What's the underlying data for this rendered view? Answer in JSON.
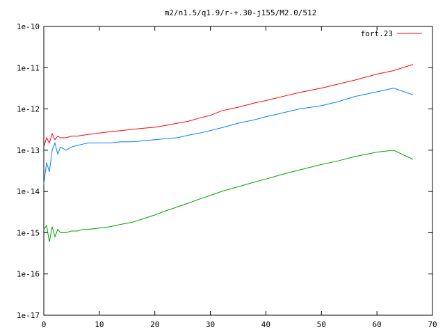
{
  "chart_data": {
    "type": "line",
    "title": "m2/n1.5/q1.9/r-+.30-j155/M2.0/512",
    "xlabel": "",
    "ylabel": "",
    "xlim": [
      0,
      70
    ],
    "ylim": [
      1e-17,
      1e-10
    ],
    "yscale": "log",
    "grid": false,
    "legend_position": "top-right",
    "xticks": [
      0,
      10,
      20,
      30,
      40,
      50,
      60,
      70
    ],
    "xtick_labels": [
      "0",
      "10",
      "20",
      "30",
      "40",
      "50",
      "60",
      "70"
    ],
    "yticks": [
      1e-17,
      1e-16,
      1e-15,
      1e-14,
      1e-13,
      1e-12,
      1e-11,
      1e-10
    ],
    "ytick_labels": [
      "1e-17",
      "1e-16",
      "1e-15",
      "1e-14",
      "1e-13",
      "1e-12",
      "1e-11",
      "1e-10"
    ],
    "series": [
      {
        "name": "fort.23",
        "color": "#ff0000",
        "x": [
          0,
          0.5,
          1,
          1.5,
          2,
          2.5,
          3,
          4,
          5,
          6,
          7,
          8,
          10,
          12,
          14,
          16,
          18,
          20,
          22,
          24,
          26,
          28,
          30,
          32,
          35,
          38,
          40,
          43,
          46,
          50,
          53,
          56,
          60,
          63,
          66.5
        ],
        "values": [
          1.2e-13,
          2e-13,
          1.5e-13,
          2.5e-13,
          1.8e-13,
          2.2e-13,
          2e-13,
          2e-13,
          2.2e-13,
          2.2e-13,
          2.3e-13,
          2.4e-13,
          2.6e-13,
          2.8e-13,
          3e-13,
          3.2e-13,
          3.4e-13,
          3.6e-13,
          4e-13,
          4.5e-13,
          5e-13,
          6e-13,
          7e-13,
          9e-13,
          1.1e-12,
          1.4e-12,
          1.6e-12,
          2e-12,
          2.5e-12,
          3.2e-12,
          4e-12,
          5e-12,
          7e-12,
          8.5e-12,
          1.2e-11
        ]
      },
      {
        "name": "",
        "color": "#0080ff",
        "x": [
          0,
          0.5,
          1,
          1.5,
          2,
          2.5,
          3,
          4,
          5,
          6,
          7,
          8,
          10,
          12,
          14,
          16,
          18,
          20,
          22,
          24,
          26,
          28,
          30,
          32,
          35,
          38,
          40,
          43,
          46,
          50,
          53,
          56,
          60,
          63,
          66.5
        ],
        "values": [
          1.5e-14,
          5e-14,
          3e-14,
          1e-13,
          1.5e-13,
          8e-14,
          1.2e-13,
          1e-13,
          1.2e-13,
          1.3e-13,
          1.4e-13,
          1.5e-13,
          1.5e-13,
          1.5e-13,
          1.6e-13,
          1.6e-13,
          1.7e-13,
          1.8e-13,
          1.9e-13,
          2e-13,
          2.3e-13,
          2.6e-13,
          3e-13,
          3.5e-13,
          4.5e-13,
          5.5e-13,
          6.5e-13,
          8e-13,
          1e-12,
          1.2e-12,
          1.5e-12,
          2e-12,
          2.6e-12,
          3.2e-12,
          2.2e-12
        ]
      },
      {
        "name": "",
        "color": "#00a000",
        "x": [
          0,
          0.5,
          1,
          1.5,
          2,
          2.5,
          3,
          4,
          5,
          6,
          7,
          8,
          10,
          12,
          14,
          16,
          18,
          20,
          22,
          24,
          26,
          28,
          30,
          32,
          35,
          38,
          40,
          43,
          46,
          50,
          53,
          56,
          60,
          63,
          66.5
        ],
        "values": [
          1.2e-15,
          1.5e-15,
          6e-16,
          1.4e-15,
          8e-16,
          1.2e-15,
          1e-15,
          1e-15,
          1.1e-15,
          1.1e-15,
          1.2e-15,
          1.2e-15,
          1.3e-15,
          1.4e-15,
          1.6e-15,
          1.8e-15,
          2.2e-15,
          2.7e-15,
          3.4e-15,
          4.2e-15,
          5.2e-15,
          6.5e-15,
          8e-15,
          1e-14,
          1.3e-14,
          1.7e-14,
          2e-14,
          2.6e-14,
          3.3e-14,
          4.5e-14,
          5.5e-14,
          7e-14,
          9e-14,
          1e-13,
          6e-14
        ]
      }
    ]
  }
}
